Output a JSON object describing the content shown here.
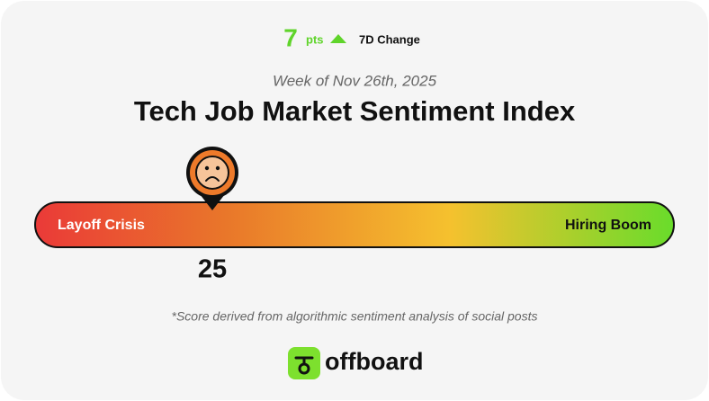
{
  "chart_data": {
    "type": "gauge",
    "title": "Tech Job Market Sentiment Index",
    "subtitle": "Week of Nov 26th, 2025",
    "change": {
      "value": 7,
      "unit": "pts",
      "label": "7D Change"
    },
    "value": 25,
    "xlim": [
      0,
      100
    ],
    "low_label": "Layoff Crisis",
    "high_label": "Hiring Boom",
    "footnote": "*Score derived from algorithmic sentiment analysis of social posts",
    "brand": "offboard"
  }
}
